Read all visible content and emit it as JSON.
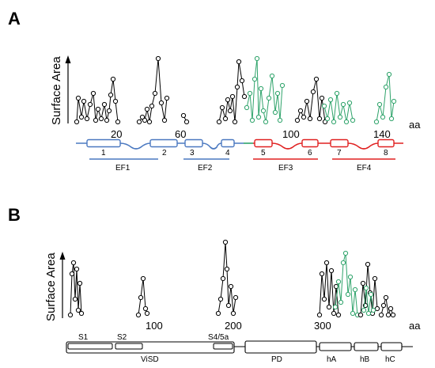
{
  "panel_a": {
    "label": "A",
    "y_axis_label": "Surface Area",
    "x_unit": "aa",
    "x_ticks": [
      "20",
      "60",
      "100",
      "140"
    ],
    "helices": [
      "1",
      "2",
      "3",
      "4",
      "5",
      "6",
      "7",
      "8"
    ],
    "domains": [
      "EF1",
      "EF2",
      "EF3",
      "EF4"
    ],
    "colors": {
      "calmodulin_n": "#4a78c0",
      "calmodulin_c": "#e02020",
      "linker": "#2ea36a",
      "highlight": "#2ea36a",
      "trace": "#000000"
    }
  },
  "panel_b": {
    "label": "B",
    "y_axis_label": "Surface Area",
    "x_unit": "aa",
    "x_ticks": [
      "100",
      "200",
      "300"
    ],
    "segments": [
      "S1",
      "S2",
      "S4/5a"
    ],
    "domains": [
      "ViSD",
      "PD",
      "hA",
      "hB",
      "hC"
    ]
  }
}
